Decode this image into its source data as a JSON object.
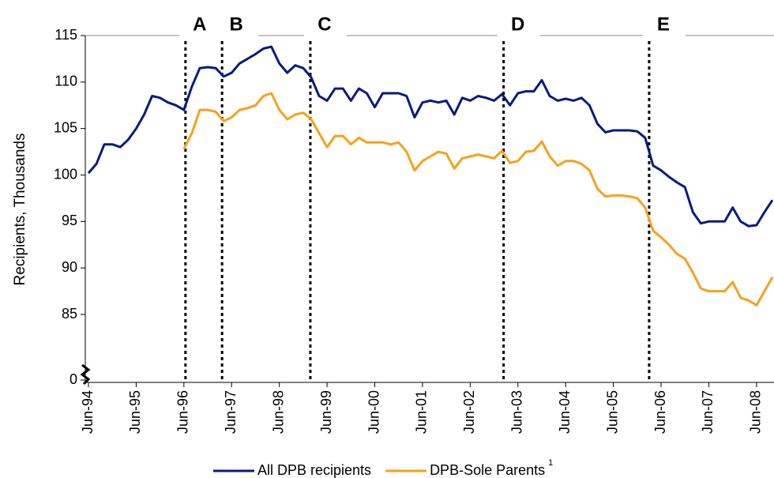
{
  "chart_data": {
    "type": "line",
    "y_label": "Recipients, Thousands",
    "categories": [
      "Jun-94",
      null,
      null,
      null,
      null,
      null,
      "Jun-95",
      null,
      null,
      null,
      null,
      null,
      "Jun-96",
      null,
      null,
      null,
      null,
      null,
      "Jun-97",
      null,
      null,
      null,
      null,
      null,
      "Jun-98",
      null,
      null,
      null,
      null,
      null,
      "Jun-99",
      null,
      null,
      null,
      null,
      null,
      "Jun-00",
      null,
      null,
      null,
      null,
      null,
      "Jun-01",
      null,
      null,
      null,
      null,
      null,
      "Jun-02",
      null,
      null,
      null,
      null,
      null,
      "Jun-03",
      null,
      null,
      null,
      null,
      null,
      "Jun-04",
      null,
      null,
      null,
      null,
      null,
      "Jun-05",
      null,
      null,
      null,
      null,
      null,
      "Jun-06",
      null,
      null,
      null,
      null,
      null,
      "Jun-07",
      null,
      null,
      null,
      null,
      null,
      "Jun-08",
      null,
      null
    ],
    "series": [
      {
        "name": "All DPB recipients",
        "color": "#0a1a80",
        "values": [
          100.2,
          101.2,
          103.3,
          103.3,
          103.0,
          103.8,
          105.0,
          106.5,
          108.5,
          108.3,
          107.8,
          107.5,
          107.0,
          109.5,
          111.5,
          111.6,
          111.5,
          110.6,
          111.0,
          112.0,
          112.5,
          113.0,
          113.6,
          113.8,
          112.0,
          111.0,
          111.8,
          111.5,
          110.5,
          108.5,
          108.0,
          109.3,
          109.3,
          108.0,
          109.3,
          108.8,
          107.3,
          108.8,
          108.8,
          108.8,
          108.5,
          106.2,
          107.8,
          108.0,
          107.8,
          108.0,
          106.5,
          108.3,
          108.0,
          108.5,
          108.3,
          108.0,
          108.7,
          107.5,
          108.8,
          109.0,
          109.0,
          110.2,
          108.5,
          108.0,
          108.2,
          108.0,
          108.3,
          107.5,
          105.5,
          104.6,
          104.8,
          104.8,
          104.8,
          104.7,
          104.0,
          101.0,
          100.5,
          99.8,
          99.2,
          98.7,
          96.0,
          94.8,
          95.0,
          95.0,
          95.0,
          96.5,
          95.0,
          94.5,
          94.6,
          96.0,
          97.3
        ]
      },
      {
        "name": "DPB-Sole Parents",
        "note": "1",
        "color": "#f5a21b",
        "values": [
          null,
          null,
          null,
          null,
          null,
          null,
          null,
          null,
          null,
          null,
          null,
          null,
          102.8,
          104.5,
          107.0,
          107.0,
          106.8,
          105.8,
          106.2,
          107.0,
          107.2,
          107.5,
          108.5,
          108.8,
          107.0,
          106.0,
          106.5,
          106.7,
          106.0,
          104.5,
          103.0,
          104.2,
          104.2,
          103.3,
          104.0,
          103.5,
          103.5,
          103.5,
          103.3,
          103.5,
          102.5,
          100.5,
          101.5,
          102.0,
          102.5,
          102.3,
          100.7,
          101.8,
          102.0,
          102.2,
          102.0,
          101.8,
          102.6,
          101.3,
          101.5,
          102.5,
          102.6,
          103.6,
          102.0,
          101.0,
          101.5,
          101.5,
          101.2,
          100.5,
          98.5,
          97.7,
          97.8,
          97.8,
          97.7,
          97.5,
          96.5,
          94.0,
          93.3,
          92.5,
          91.5,
          91.0,
          89.5,
          87.8,
          87.5,
          87.5,
          87.5,
          88.5,
          86.8,
          86.5,
          86.0,
          87.5,
          89.0
        ]
      }
    ],
    "ylim": [
      0,
      115
    ],
    "y_break": [
      0,
      85
    ],
    "yticks": [
      0,
      85,
      90,
      95,
      100,
      105,
      110,
      115
    ],
    "periods": [
      {
        "label": "A",
        "at": 12.2
      },
      {
        "label": "B",
        "at": 16.8
      },
      {
        "label": "C",
        "at": 27.9
      },
      {
        "label": "D",
        "at": 52.2
      },
      {
        "label": "E",
        "at": 70.5
      }
    ],
    "legend": "bottom"
  }
}
